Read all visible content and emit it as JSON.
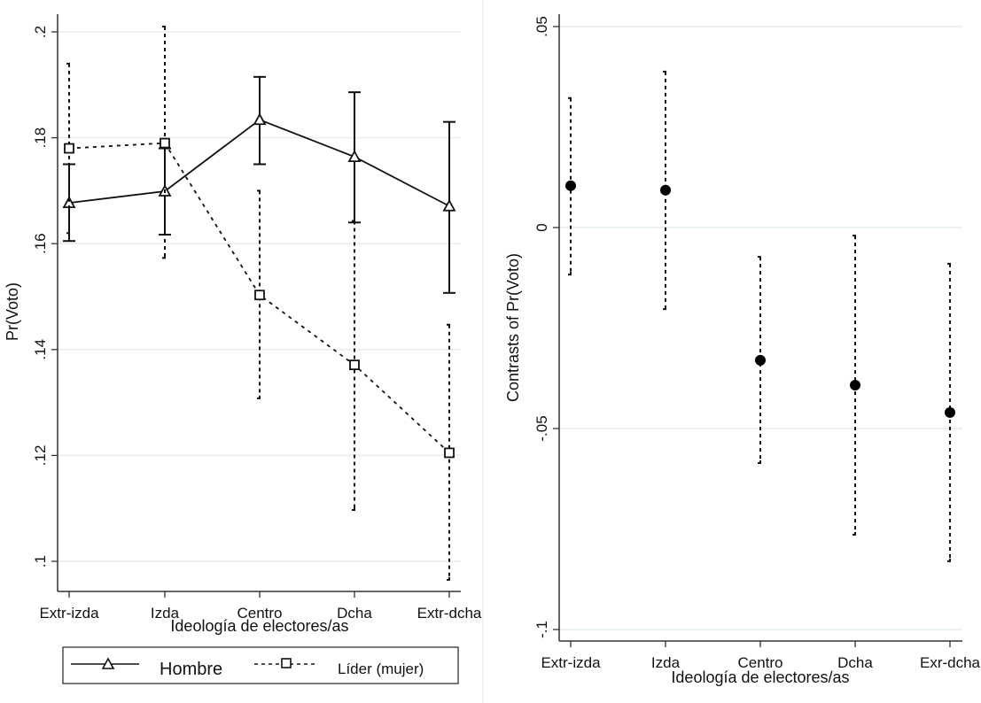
{
  "chart_data": [
    {
      "type": "line",
      "panel": "left",
      "title": "",
      "xlabel": "Ideología de electores/as",
      "ylabel": "Pr(Voto)",
      "categories": [
        "Extr-izda",
        "Izda",
        "Centro",
        "Dcha",
        "Extr-dcha"
      ],
      "ylim": [
        0.094,
        0.205
      ],
      "yticks": [
        0.1,
        0.12,
        0.14,
        0.16,
        0.18,
        0.2
      ],
      "ytick_labels": [
        ".1",
        ".12",
        ".14",
        ".16",
        ".18",
        ".2"
      ],
      "grid": true,
      "legend_position": "bottom",
      "series": [
        {
          "name": "Hombre",
          "line_style": "solid",
          "marker": "triangle",
          "values": [
            0.1677,
            0.1699,
            0.1834,
            0.1764,
            0.1671
          ],
          "ci_low": [
            0.1605,
            0.1617,
            0.175,
            0.164,
            0.1507
          ],
          "ci_high": [
            0.175,
            0.178,
            0.1915,
            0.1886,
            0.183
          ]
        },
        {
          "name": "Líder (mujer)",
          "line_style": "dashed",
          "marker": "square",
          "values": [
            0.178,
            0.179,
            0.1503,
            0.1371,
            0.1205
          ],
          "ci_low": [
            0.162,
            0.1573,
            0.1308,
            0.1097,
            0.0965
          ],
          "ci_high": [
            0.194,
            0.201,
            0.17,
            0.1643,
            0.1447
          ]
        }
      ]
    },
    {
      "type": "scatter",
      "panel": "right",
      "title": "",
      "xlabel": "Ideología de  electores/as",
      "ylabel": "Contrasts of Pr(Voto)",
      "categories": [
        "Extr-izda",
        "Izda",
        "Centro",
        "Dcha",
        "Exr-dcha"
      ],
      "ylim": [
        -0.103,
        0.052
      ],
      "yticks": [
        -0.1,
        -0.05,
        0,
        0.05
      ],
      "ytick_labels": [
        "-.1",
        "-.05",
        "0",
        ".05"
      ],
      "grid": true,
      "series": [
        {
          "name": "Contrast",
          "marker": "filled-circle",
          "ci_style": "dashed",
          "values": [
            0.0104,
            0.0093,
            -0.033,
            -0.0392,
            -0.046
          ],
          "ci_low": [
            -0.0117,
            -0.0203,
            -0.0586,
            -0.0764,
            -0.083
          ],
          "ci_high": [
            0.0322,
            0.0388,
            -0.0073,
            -0.002,
            -0.009
          ]
        }
      ]
    }
  ],
  "legend": {
    "items": [
      {
        "label": "Hombre"
      },
      {
        "label": "Líder (mujer)"
      }
    ]
  }
}
